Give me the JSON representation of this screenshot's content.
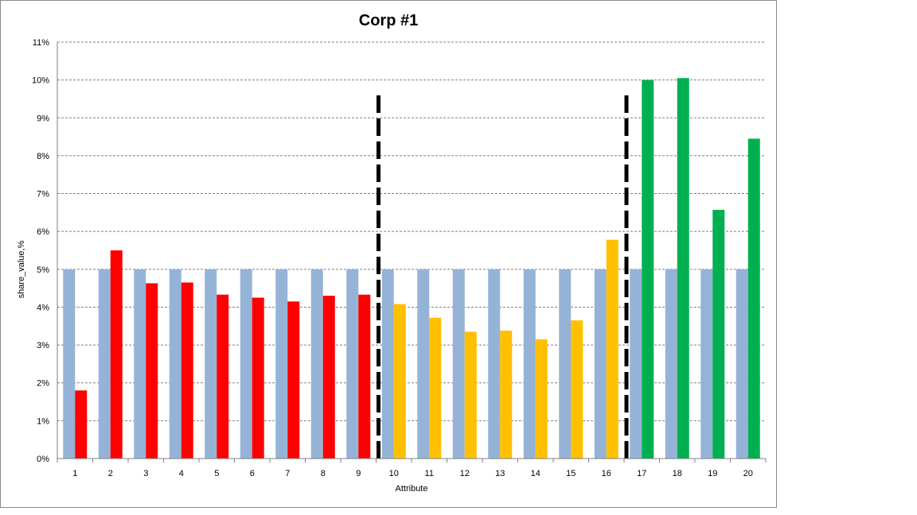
{
  "chart_data": {
    "type": "bar",
    "title": "Corp #1",
    "xlabel": "Attribute",
    "ylabel": "share_value,%",
    "ylim": [
      0,
      11
    ],
    "y_ticks": [
      "0%",
      "1%",
      "2%",
      "3%",
      "4%",
      "5%",
      "6%",
      "7%",
      "8%",
      "9%",
      "10%",
      "11%"
    ],
    "y_tick_values": [
      0,
      1,
      2,
      3,
      4,
      5,
      6,
      7,
      8,
      9,
      10,
      11
    ],
    "grid": true,
    "legend": "none",
    "categories": [
      "1",
      "2",
      "3",
      "4",
      "5",
      "6",
      "7",
      "8",
      "9",
      "10",
      "11",
      "12",
      "13",
      "14",
      "15",
      "16",
      "17",
      "18",
      "19",
      "20"
    ],
    "series": [
      {
        "color": "#95b3d7",
        "values": [
          5,
          5,
          5,
          5,
          5,
          5,
          5,
          5,
          5,
          5,
          5,
          5,
          5,
          5,
          5,
          5,
          5,
          5,
          5,
          5
        ]
      },
      {
        "values": [
          1.8,
          5.5,
          4.63,
          4.65,
          4.33,
          4.25,
          4.15,
          4.3,
          4.33,
          4.08,
          3.72,
          3.35,
          3.38,
          3.15,
          3.65,
          5.78,
          10.0,
          10.05,
          6.57,
          8.45
        ],
        "colors": [
          "#ff0000",
          "#ff0000",
          "#ff0000",
          "#ff0000",
          "#ff0000",
          "#ff0000",
          "#ff0000",
          "#ff0000",
          "#ff0000",
          "#ffc000",
          "#ffc000",
          "#ffc000",
          "#ffc000",
          "#ffc000",
          "#ffc000",
          "#ffc000",
          "#00b050",
          "#00b050",
          "#00b050",
          "#00b050"
        ]
      }
    ],
    "dividers": [
      {
        "between": [
          "9",
          "10"
        ],
        "top_value": 9.65
      },
      {
        "between": [
          "16",
          "17"
        ],
        "top_value": 9.65
      }
    ]
  }
}
